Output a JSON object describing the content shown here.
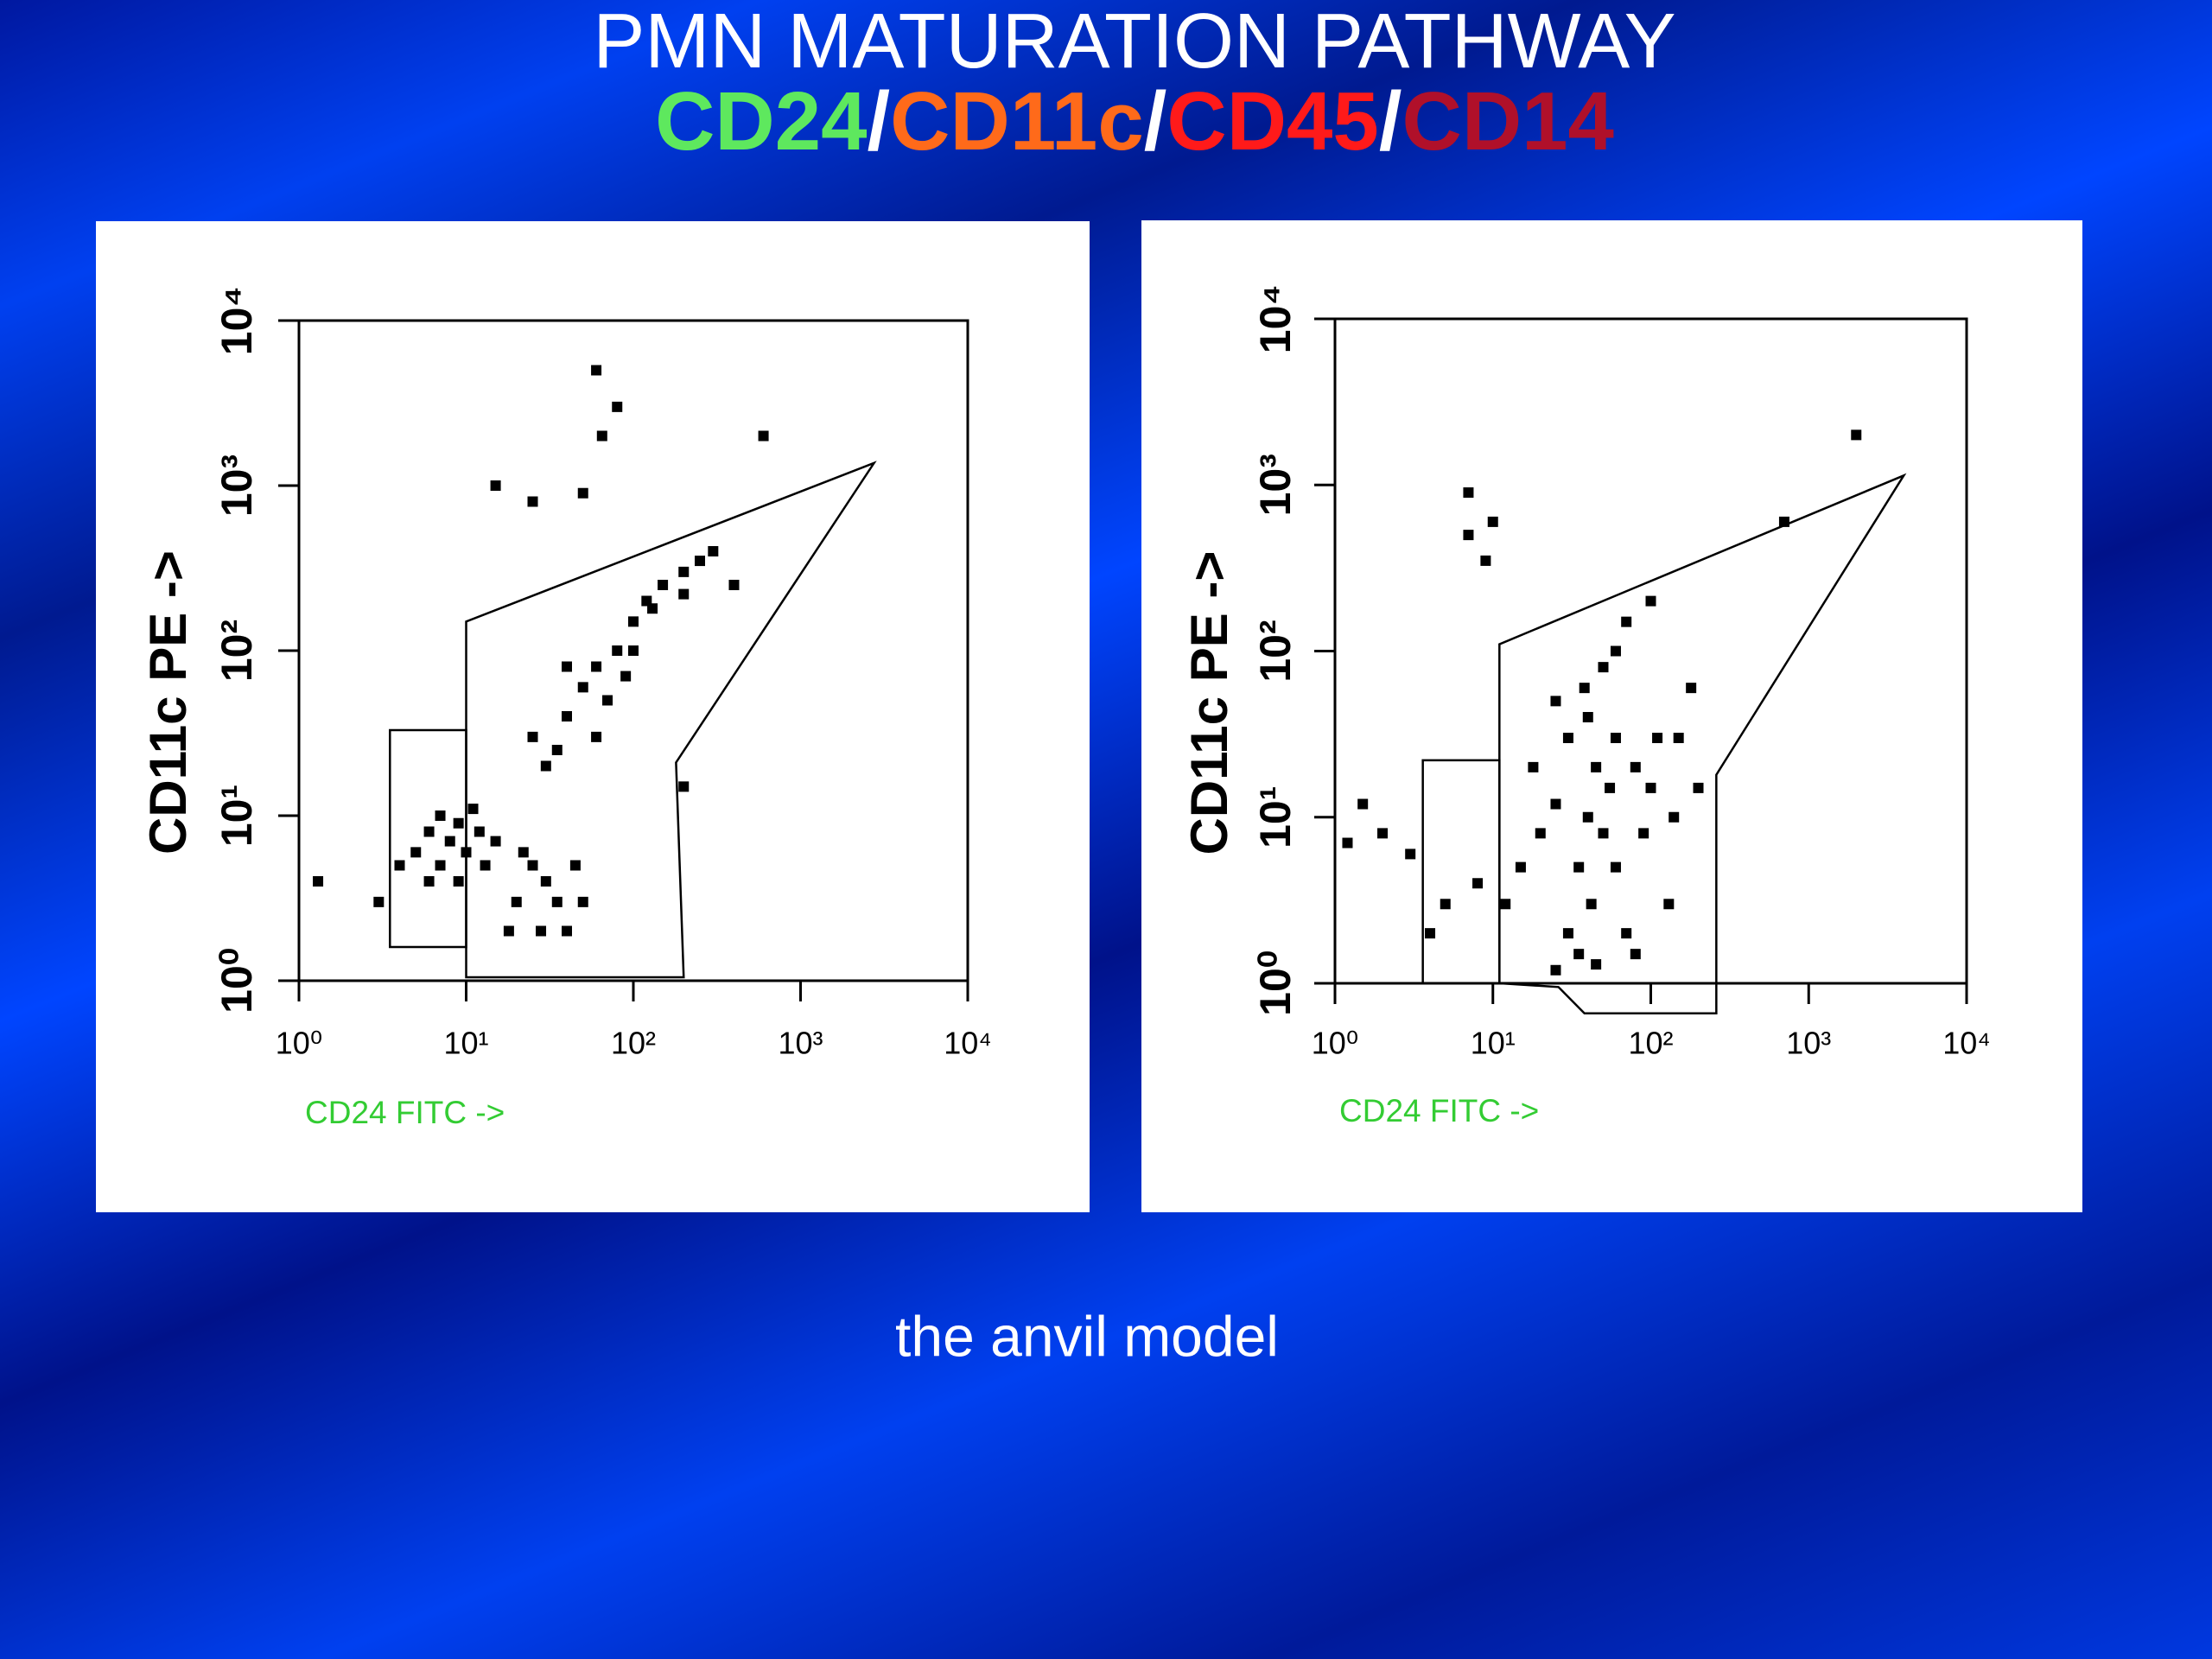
{
  "slide": {
    "title": "PMN MATURATION PATHWAY",
    "subtitle": [
      {
        "text": "CD24",
        "color": "#5ee85e"
      },
      {
        "text": "/",
        "color": "#ffffff"
      },
      {
        "text": "CD11c",
        "color": "#ff6a1a"
      },
      {
        "text": "/",
        "color": "#ffffff"
      },
      {
        "text": "CD45",
        "color": "#ff1a1a"
      },
      {
        "text": "/",
        "color": "#ffffff"
      },
      {
        "text": "CD14",
        "color": "#b0102a"
      }
    ],
    "caption": "the anvil model"
  },
  "chart_data": [
    {
      "type": "scatter",
      "xlabel": "CD24 FITC ->",
      "ylabel": "CD11c PE ->",
      "color": "#000000",
      "xlabel_color": "#33cc33",
      "log_x": true,
      "log_y": true,
      "xlim": [
        1,
        10000
      ],
      "ylim": [
        1,
        10000
      ],
      "xticks": [
        {
          "value": 1,
          "label": "10⁰"
        },
        {
          "value": 10,
          "label": "10¹"
        },
        {
          "value": 100,
          "label": "10²"
        },
        {
          "value": 1000,
          "label": "10³"
        },
        {
          "value": 10000,
          "label": "10⁴"
        }
      ],
      "yticks": [
        {
          "value": 1,
          "label": "10⁰"
        },
        {
          "value": 10,
          "label": "10¹"
        },
        {
          "value": 100,
          "label": "10²"
        },
        {
          "value": 1000,
          "label": "10³"
        },
        {
          "value": 10000,
          "label": "10⁴"
        }
      ],
      "x": [
        5,
        6,
        7,
        8,
        9,
        10,
        12,
        6,
        4,
        15,
        11,
        7,
        9,
        13,
        20,
        25,
        30,
        35,
        40,
        28,
        22,
        45,
        50,
        18,
        30,
        40,
        50,
        60,
        80,
        100,
        120,
        150,
        200,
        250,
        70,
        90,
        40,
        25,
        35,
        60,
        100,
        130,
        200,
        300,
        3,
        1.3,
        15,
        25,
        60,
        65,
        80,
        50,
        400,
        200,
        600
      ],
      "values": [
        6,
        8,
        5,
        7,
        9,
        6,
        8,
        4,
        5,
        7,
        11,
        10,
        4,
        5,
        3,
        5,
        4,
        3,
        2,
        2,
        6,
        5,
        3,
        2,
        20,
        40,
        60,
        80,
        100,
        150,
        200,
        250,
        300,
        350,
        50,
        70,
        80,
        30,
        25,
        30,
        100,
        180,
        220,
        400,
        3,
        4,
        1000,
        800,
        5000,
        2000,
        3000,
        900,
        250,
        15,
        2000
      ],
      "gates": [
        [
          [
            10,
            33
          ],
          [
            10,
            150
          ],
          [
            2750,
            1370
          ],
          [
            180,
            21
          ],
          [
            200,
            1.05
          ],
          [
            10,
            1.05
          ]
        ],
        [
          [
            3.5,
            1.6
          ],
          [
            3.5,
            33
          ],
          [
            10,
            33
          ],
          [
            10,
            1.6
          ]
        ]
      ]
    },
    {
      "type": "scatter",
      "xlabel": "CD24 FITC ->",
      "ylabel": "CD11c PE ->",
      "color": "#000000",
      "xlabel_color": "#33cc33",
      "log_x": true,
      "log_y": true,
      "xlim": [
        1,
        10000
      ],
      "ylim": [
        1,
        10000
      ],
      "xticks": [
        {
          "value": 1,
          "label": "10⁰"
        },
        {
          "value": 10,
          "label": "10¹"
        },
        {
          "value": 100,
          "label": "10²"
        },
        {
          "value": 1000,
          "label": "10³"
        },
        {
          "value": 10000,
          "label": "10⁴"
        }
      ],
      "yticks": [
        {
          "value": 1,
          "label": "10⁰"
        },
        {
          "value": 10,
          "label": "10¹"
        },
        {
          "value": 100,
          "label": "10²"
        },
        {
          "value": 1000,
          "label": "10³"
        },
        {
          "value": 10000,
          "label": "10⁴"
        }
      ],
      "x": [
        30,
        35,
        40,
        45,
        40,
        38,
        42,
        50,
        55,
        30,
        25,
        60,
        70,
        35,
        45,
        20,
        15,
        12,
        18,
        25,
        50,
        60,
        80,
        100,
        90,
        110,
        8,
        5,
        3,
        2,
        1.2,
        1.5,
        200,
        150,
        60,
        70,
        100,
        180,
        7,
        7,
        9,
        10,
        700,
        2000,
        4,
        25,
        80,
        130,
        140
      ],
      "values": [
        2,
        5,
        10,
        20,
        40,
        60,
        3,
        8,
        15,
        30,
        12,
        5,
        2,
        1.5,
        1.3,
        8,
        5,
        3,
        20,
        50,
        80,
        30,
        20,
        15,
        8,
        30,
        4,
        3,
        6,
        8,
        7,
        12,
        15,
        30,
        100,
        150,
        200,
        60,
        900,
        500,
        350,
        600,
        600,
        2000,
        2,
        1.2,
        1.5,
        3,
        10
      ],
      "gates": [
        [
          [
            11,
            1
          ],
          [
            11,
            110
          ],
          [
            4000,
            1140
          ],
          [
            260,
            18
          ],
          [
            260,
            0.66
          ],
          [
            38,
            0.66
          ],
          [
            26,
            0.95
          ]
        ],
        [
          [
            3.6,
            1
          ],
          [
            3.6,
            22
          ],
          [
            11,
            22
          ],
          [
            11,
            1
          ]
        ]
      ]
    }
  ]
}
